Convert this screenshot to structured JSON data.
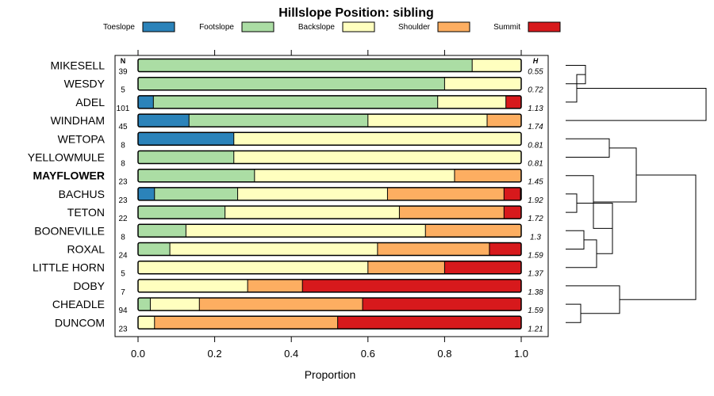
{
  "chart_data": {
    "type": "bar",
    "stacked": true,
    "orientation": "horizontal",
    "title": "Hillslope Position: sibling",
    "xlabel": "Proportion",
    "ylabel": "",
    "xlim": [
      0,
      1
    ],
    "xticks": [
      0.0,
      0.2,
      0.4,
      0.6,
      0.8,
      1.0
    ],
    "xtick_labels": [
      "0.0",
      "0.2",
      "0.4",
      "0.6",
      "0.8",
      "1.0"
    ],
    "legend_position": "top",
    "n_header": "N",
    "h_header": "H",
    "highlight": "MAYFLOWER",
    "series": [
      {
        "name": "Toeslope",
        "color": "#2b83ba"
      },
      {
        "name": "Footslope",
        "color": "#abdda4"
      },
      {
        "name": "Backslope",
        "color": "#ffffbf"
      },
      {
        "name": "Shoulder",
        "color": "#fdae61"
      },
      {
        "name": "Summit",
        "color": "#d7191c"
      }
    ],
    "categories": [
      {
        "name": "MIKESELL",
        "n": "39",
        "h": "0.55",
        "values": [
          0,
          0.872,
          0.128,
          0,
          0
        ]
      },
      {
        "name": "WESDY",
        "n": "5",
        "h": "0.72",
        "values": [
          0,
          0.8,
          0.2,
          0,
          0
        ]
      },
      {
        "name": "ADEL",
        "n": "101",
        "h": "1.13",
        "values": [
          0.04,
          0.742,
          0.178,
          0,
          0.04
        ]
      },
      {
        "name": "WINDHAM",
        "n": "45",
        "h": "1.74",
        "values": [
          0.133,
          0.467,
          0.311,
          0.089,
          0
        ]
      },
      {
        "name": "WETOPA",
        "n": "8",
        "h": "0.81",
        "values": [
          0.25,
          0,
          0.75,
          0,
          0
        ]
      },
      {
        "name": "YELLOWMULE",
        "n": "8",
        "h": "0.81",
        "values": [
          0,
          0.25,
          0.75,
          0,
          0
        ]
      },
      {
        "name": "MAYFLOWER",
        "n": "23",
        "h": "1.45",
        "values": [
          0,
          0.304,
          0.522,
          0.174,
          0
        ]
      },
      {
        "name": "BACHUS",
        "n": "23",
        "h": "1.92",
        "values": [
          0.043,
          0.217,
          0.391,
          0.304,
          0.043
        ]
      },
      {
        "name": "TETON",
        "n": "22",
        "h": "1.72",
        "values": [
          0,
          0.227,
          0.455,
          0.273,
          0.045
        ]
      },
      {
        "name": "BOONEVILLE",
        "n": "8",
        "h": "1.3",
        "values": [
          0,
          0.125,
          0.625,
          0.25,
          0
        ]
      },
      {
        "name": "ROXAL",
        "n": "24",
        "h": "1.59",
        "values": [
          0,
          0.083,
          0.542,
          0.292,
          0.083
        ]
      },
      {
        "name": "LITTLE HORN",
        "n": "5",
        "h": "1.37",
        "values": [
          0,
          0,
          0.6,
          0.2,
          0.2
        ]
      },
      {
        "name": "DOBY",
        "n": "7",
        "h": "1.38",
        "values": [
          0,
          0,
          0.286,
          0.143,
          0.571
        ]
      },
      {
        "name": "CHEADLE",
        "n": "94",
        "h": "1.59",
        "values": [
          0,
          0.032,
          0.128,
          0.426,
          0.415
        ]
      },
      {
        "name": "DUNCOM",
        "n": "23",
        "h": "1.21",
        "values": [
          0,
          0,
          0.043,
          0.478,
          0.478
        ]
      }
    ]
  }
}
